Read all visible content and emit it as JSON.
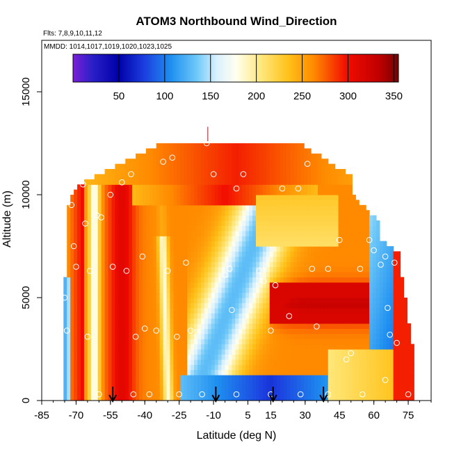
{
  "chart_data": {
    "type": "heatmap",
    "title": "ATOM3 Northbound Wind_Direction",
    "subtitle_flights": "Flts: 7,8,9,10,11,12",
    "subtitle_dates": "MMDD: 1014,1017,1019,1020,1023,1025",
    "xlabel": "Latitude (deg N)",
    "ylabel": "Altitude (m)",
    "xlim": [
      -85,
      85
    ],
    "ylim": [
      0,
      17500
    ],
    "x_ticks": [
      -85,
      -70,
      -55,
      -40,
      -25,
      -10,
      5,
      15,
      30,
      45,
      60,
      75
    ],
    "x_tick_labels": [
      "-85",
      "-70",
      "-55",
      "-40",
      "-25",
      "-10",
      "5",
      "15",
      "30",
      "45",
      "60",
      "75"
    ],
    "y_ticks": [
      0,
      5000,
      10000,
      15000
    ],
    "y_tick_labels": [
      "0",
      "5000",
      "10000",
      "15000"
    ],
    "colorbar": {
      "range": [
        0,
        355
      ],
      "ticks": [
        50,
        100,
        150,
        200,
        250,
        300,
        350
      ],
      "tick_labels": [
        "50",
        "100",
        "150",
        "200",
        "250",
        "300",
        "350"
      ]
    },
    "arrows_latitude": [
      -54,
      -9,
      16,
      38
    ],
    "legend": "top-inside colorbar",
    "grid": false
  }
}
